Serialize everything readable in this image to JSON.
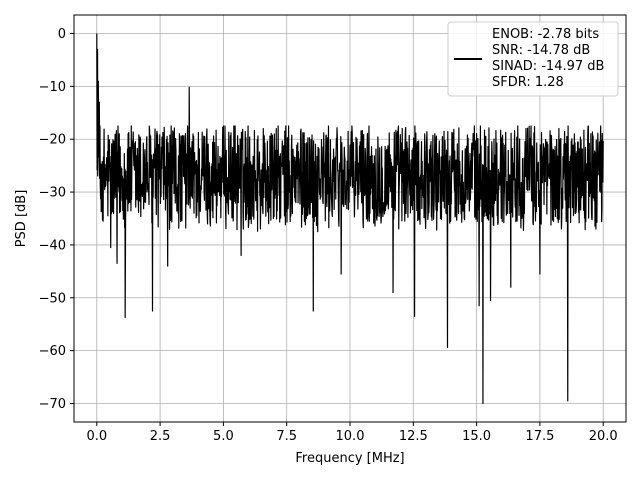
{
  "chart_data": {
    "type": "line",
    "title": "",
    "xlabel": "Frequency [MHz]",
    "ylabel": "PSD [dB]",
    "xlim": [
      -0.9,
      20.9
    ],
    "ylim": [
      -73.5,
      3.5
    ],
    "xticks": [
      0.0,
      2.5,
      5.0,
      7.5,
      10.0,
      12.5,
      15.0,
      17.5,
      20.0
    ],
    "xtick_labels": [
      "0.0",
      "2.5",
      "5.0",
      "7.5",
      "10.0",
      "12.5",
      "15.0",
      "17.5",
      "20.0"
    ],
    "yticks": [
      0,
      -10,
      -20,
      -30,
      -40,
      -50,
      -60,
      -70
    ],
    "ytick_labels": [
      "0",
      "−10",
      "−20",
      "−30",
      "−40",
      "−50",
      "−60",
      "−70"
    ],
    "grid": true,
    "legend": {
      "position": "top-right",
      "entries": [
        "ENOB: -2.78 bits",
        "SNR: -14.78 dB",
        "SINAD: -14.97 dB",
        "SFDR: 1.28"
      ]
    },
    "series": [
      {
        "color": "#000000",
        "x_range": [
          0,
          20
        ],
        "noise_floor": {
          "upper_envelope": -19,
          "lower_envelope": -37,
          "median": -27
        },
        "peaks": [
          {
            "x": 0.0,
            "y": 0
          },
          {
            "x": 0.03,
            "y": -3
          },
          {
            "x": 0.06,
            "y": -9
          },
          {
            "x": 0.1,
            "y": -13
          },
          {
            "x": 3.65,
            "y": -10.2
          }
        ],
        "dips": [
          {
            "x": 0.25,
            "y": -35.5
          },
          {
            "x": 0.55,
            "y": -40.5
          },
          {
            "x": 0.8,
            "y": -43.5
          },
          {
            "x": 1.12,
            "y": -53.7
          },
          {
            "x": 2.2,
            "y": -52.5
          },
          {
            "x": 2.8,
            "y": -44
          },
          {
            "x": 5.7,
            "y": -42
          },
          {
            "x": 8.55,
            "y": -52.5
          },
          {
            "x": 9.65,
            "y": -45.5
          },
          {
            "x": 11.7,
            "y": -49
          },
          {
            "x": 12.55,
            "y": -53.5
          },
          {
            "x": 13.85,
            "y": -59.4
          },
          {
            "x": 15.1,
            "y": -51.5
          },
          {
            "x": 15.25,
            "y": -70
          },
          {
            "x": 15.55,
            "y": -50.5
          },
          {
            "x": 16.35,
            "y": -48
          },
          {
            "x": 17.5,
            "y": -45.5
          },
          {
            "x": 18.6,
            "y": -69.5
          }
        ]
      }
    ]
  }
}
